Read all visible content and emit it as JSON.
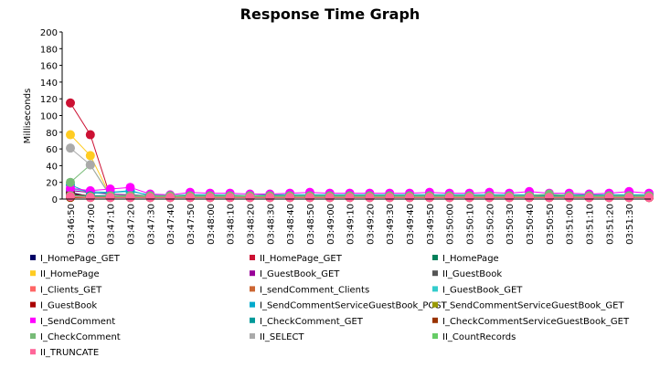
{
  "chart_data": {
    "type": "line",
    "title": "Response Time Graph",
    "y_label": "Milliseconds",
    "categories": [
      "03:46:50",
      "03:47:00",
      "03:47:10",
      "03:47:20",
      "03:47:30",
      "03:47:40",
      "03:47:50",
      "03:48:00",
      "03:48:10",
      "03:48:20",
      "03:48:30",
      "03:48:40",
      "03:48:50",
      "03:49:00",
      "03:49:10",
      "03:49:20",
      "03:49:30",
      "03:49:40",
      "03:49:50",
      "03:50:00",
      "03:50:10",
      "03:50:20",
      "03:50:30",
      "03:50:40",
      "03:50:50",
      "03:51:00",
      "03:51:10",
      "03:51:20",
      "03:51:30",
      null
    ],
    "ylim": [
      0,
      200
    ],
    "yticks": [
      0,
      20,
      40,
      60,
      80,
      100,
      120,
      140,
      160,
      180,
      200
    ],
    "grid": false,
    "series": [
      {
        "name": "I_HomePage_GET",
        "color": "#000066",
        "values": [
          8,
          3,
          2,
          2,
          2,
          2,
          2,
          2,
          2,
          2,
          2,
          2,
          2,
          2,
          2,
          2,
          2,
          2,
          2,
          2,
          2,
          2,
          2,
          2,
          2,
          2,
          2,
          2,
          2,
          2
        ]
      },
      {
        "name": "II_HomePage_GET",
        "color": "#cc1133",
        "values": [
          115,
          77,
          3,
          3,
          2,
          2,
          3,
          2,
          2,
          2,
          2,
          2,
          2,
          2,
          2,
          2,
          2,
          2,
          2,
          2,
          2,
          2,
          2,
          2,
          2,
          2,
          2,
          2,
          2,
          2
        ]
      },
      {
        "name": "I_HomePage",
        "color": "#00805a",
        "values": [
          5,
          3,
          3,
          3,
          3,
          3,
          3,
          3,
          3,
          3,
          3,
          3,
          3,
          3,
          3,
          3,
          3,
          3,
          3,
          3,
          3,
          3,
          3,
          3,
          3,
          3,
          3,
          3,
          3,
          3
        ]
      },
      {
        "name": "II_HomePage",
        "color": "#ffcc22",
        "values": [
          77,
          52,
          4,
          3,
          3,
          3,
          3,
          3,
          3,
          3,
          3,
          3,
          3,
          3,
          3,
          3,
          3,
          3,
          3,
          3,
          3,
          3,
          3,
          3,
          3,
          3,
          3,
          3,
          3,
          3
        ]
      },
      {
        "name": "I_GuestBook_GET",
        "color": "#990099",
        "values": [
          10,
          8,
          6,
          5,
          4,
          4,
          4,
          4,
          4,
          4,
          4,
          4,
          4,
          4,
          4,
          4,
          4,
          4,
          4,
          4,
          4,
          4,
          4,
          4,
          4,
          4,
          4,
          4,
          4,
          4
        ]
      },
      {
        "name": "II_GuestBook",
        "color": "#555555",
        "values": [
          4,
          3,
          3,
          3,
          3,
          3,
          3,
          3,
          3,
          3,
          3,
          3,
          3,
          3,
          3,
          3,
          3,
          3,
          3,
          3,
          3,
          3,
          3,
          3,
          3,
          3,
          3,
          3,
          3,
          3
        ]
      },
      {
        "name": "I_Clients_GET",
        "color": "#ff6666",
        "values": [
          3,
          2,
          2,
          2,
          2,
          2,
          2,
          2,
          2,
          2,
          2,
          2,
          2,
          2,
          2,
          2,
          2,
          2,
          2,
          2,
          2,
          2,
          2,
          2,
          2,
          2,
          2,
          2,
          2,
          2
        ]
      },
      {
        "name": "I_sendComment_Clients",
        "color": "#cc6633",
        "values": [
          3,
          3,
          3,
          3,
          3,
          3,
          3,
          3,
          3,
          3,
          3,
          3,
          3,
          3,
          3,
          3,
          3,
          3,
          3,
          3,
          3,
          3,
          3,
          3,
          3,
          3,
          3,
          3,
          3,
          3
        ]
      },
      {
        "name": "I_GuestBook_GET",
        "color": "#33cccc",
        "values": [
          12,
          9,
          8,
          9,
          5,
          4,
          5,
          5,
          5,
          4,
          5,
          5,
          5,
          5,
          5,
          5,
          5,
          5,
          5,
          5,
          5,
          5,
          5,
          5,
          5,
          5,
          5,
          5,
          5,
          5
        ]
      },
      {
        "name": "I_GuestBook",
        "color": "#aa0000",
        "values": [
          6,
          4,
          3,
          3,
          3,
          3,
          3,
          3,
          3,
          3,
          3,
          3,
          3,
          3,
          3,
          3,
          3,
          3,
          3,
          3,
          3,
          3,
          3,
          3,
          3,
          3,
          3,
          3,
          3,
          3
        ]
      },
      {
        "name": "I_SendCommentServiceGuestBook_POST",
        "color": "#00aacc",
        "values": [
          17,
          7,
          8,
          10,
          4,
          4,
          5,
          5,
          4,
          4,
          5,
          5,
          5,
          5,
          5,
          5,
          5,
          5,
          5,
          5,
          5,
          5,
          5,
          5,
          5,
          5,
          5,
          5,
          5,
          5
        ]
      },
      {
        "name": "I_SendCommentServiceGuestBook_GET",
        "color": "#999900",
        "values": [
          2,
          2,
          2,
          2,
          2,
          2,
          2,
          2,
          2,
          2,
          2,
          2,
          2,
          2,
          2,
          2,
          2,
          2,
          2,
          2,
          2,
          2,
          2,
          2,
          2,
          2,
          2,
          2,
          2,
          2
        ]
      },
      {
        "name": "I_SendComment",
        "color": "#ff00ff",
        "values": [
          13,
          10,
          12,
          14,
          6,
          5,
          8,
          7,
          7,
          6,
          6,
          7,
          8,
          7,
          7,
          7,
          7,
          7,
          8,
          7,
          7,
          8,
          7,
          9,
          7,
          7,
          6,
          7,
          9,
          7
        ]
      },
      {
        "name": "I_CheckComment_GET",
        "color": "#009999",
        "values": [
          4,
          4,
          4,
          4,
          4,
          4,
          4,
          4,
          4,
          4,
          4,
          4,
          4,
          4,
          4,
          4,
          4,
          4,
          4,
          4,
          4,
          4,
          4,
          4,
          4,
          4,
          4,
          4,
          4,
          4
        ]
      },
      {
        "name": "I_CheckCommentServiceGuestBook_GET",
        "color": "#993300",
        "values": [
          2,
          2,
          2,
          2,
          2,
          2,
          2,
          2,
          2,
          2,
          2,
          2,
          2,
          2,
          2,
          2,
          2,
          2,
          2,
          2,
          2,
          2,
          2,
          2,
          2,
          2,
          2,
          2,
          2,
          2
        ]
      },
      {
        "name": "I_CheckComment",
        "color": "#77bb77",
        "values": [
          20,
          41,
          4,
          4,
          4,
          4,
          4,
          4,
          4,
          4,
          4,
          4,
          4,
          4,
          4,
          4,
          4,
          4,
          4,
          4,
          4,
          4,
          4,
          4,
          6,
          4,
          4,
          4,
          4,
          4
        ]
      },
      {
        "name": "II_SELECT",
        "color": "#aaaaaa",
        "values": [
          61,
          41,
          3,
          3,
          3,
          3,
          3,
          3,
          3,
          3,
          3,
          3,
          3,
          3,
          3,
          3,
          3,
          3,
          3,
          3,
          3,
          3,
          3,
          3,
          3,
          3,
          3,
          3,
          3,
          3
        ]
      },
      {
        "name": "II_CountRecords",
        "color": "#66cc66",
        "values": [
          4,
          3,
          3,
          3,
          3,
          3,
          3,
          3,
          3,
          3,
          3,
          3,
          3,
          3,
          3,
          3,
          3,
          3,
          3,
          3,
          3,
          3,
          3,
          3,
          3,
          3,
          3,
          3,
          3,
          3
        ]
      },
      {
        "name": "II_TRUNCATE",
        "color": "#ff6699",
        "values": [
          3,
          2,
          2,
          2,
          2,
          2,
          2,
          2,
          2,
          2,
          2,
          2,
          2,
          2,
          2,
          2,
          2,
          2,
          2,
          2,
          2,
          2,
          2,
          2,
          2,
          2,
          2,
          2,
          2,
          2
        ]
      }
    ]
  }
}
